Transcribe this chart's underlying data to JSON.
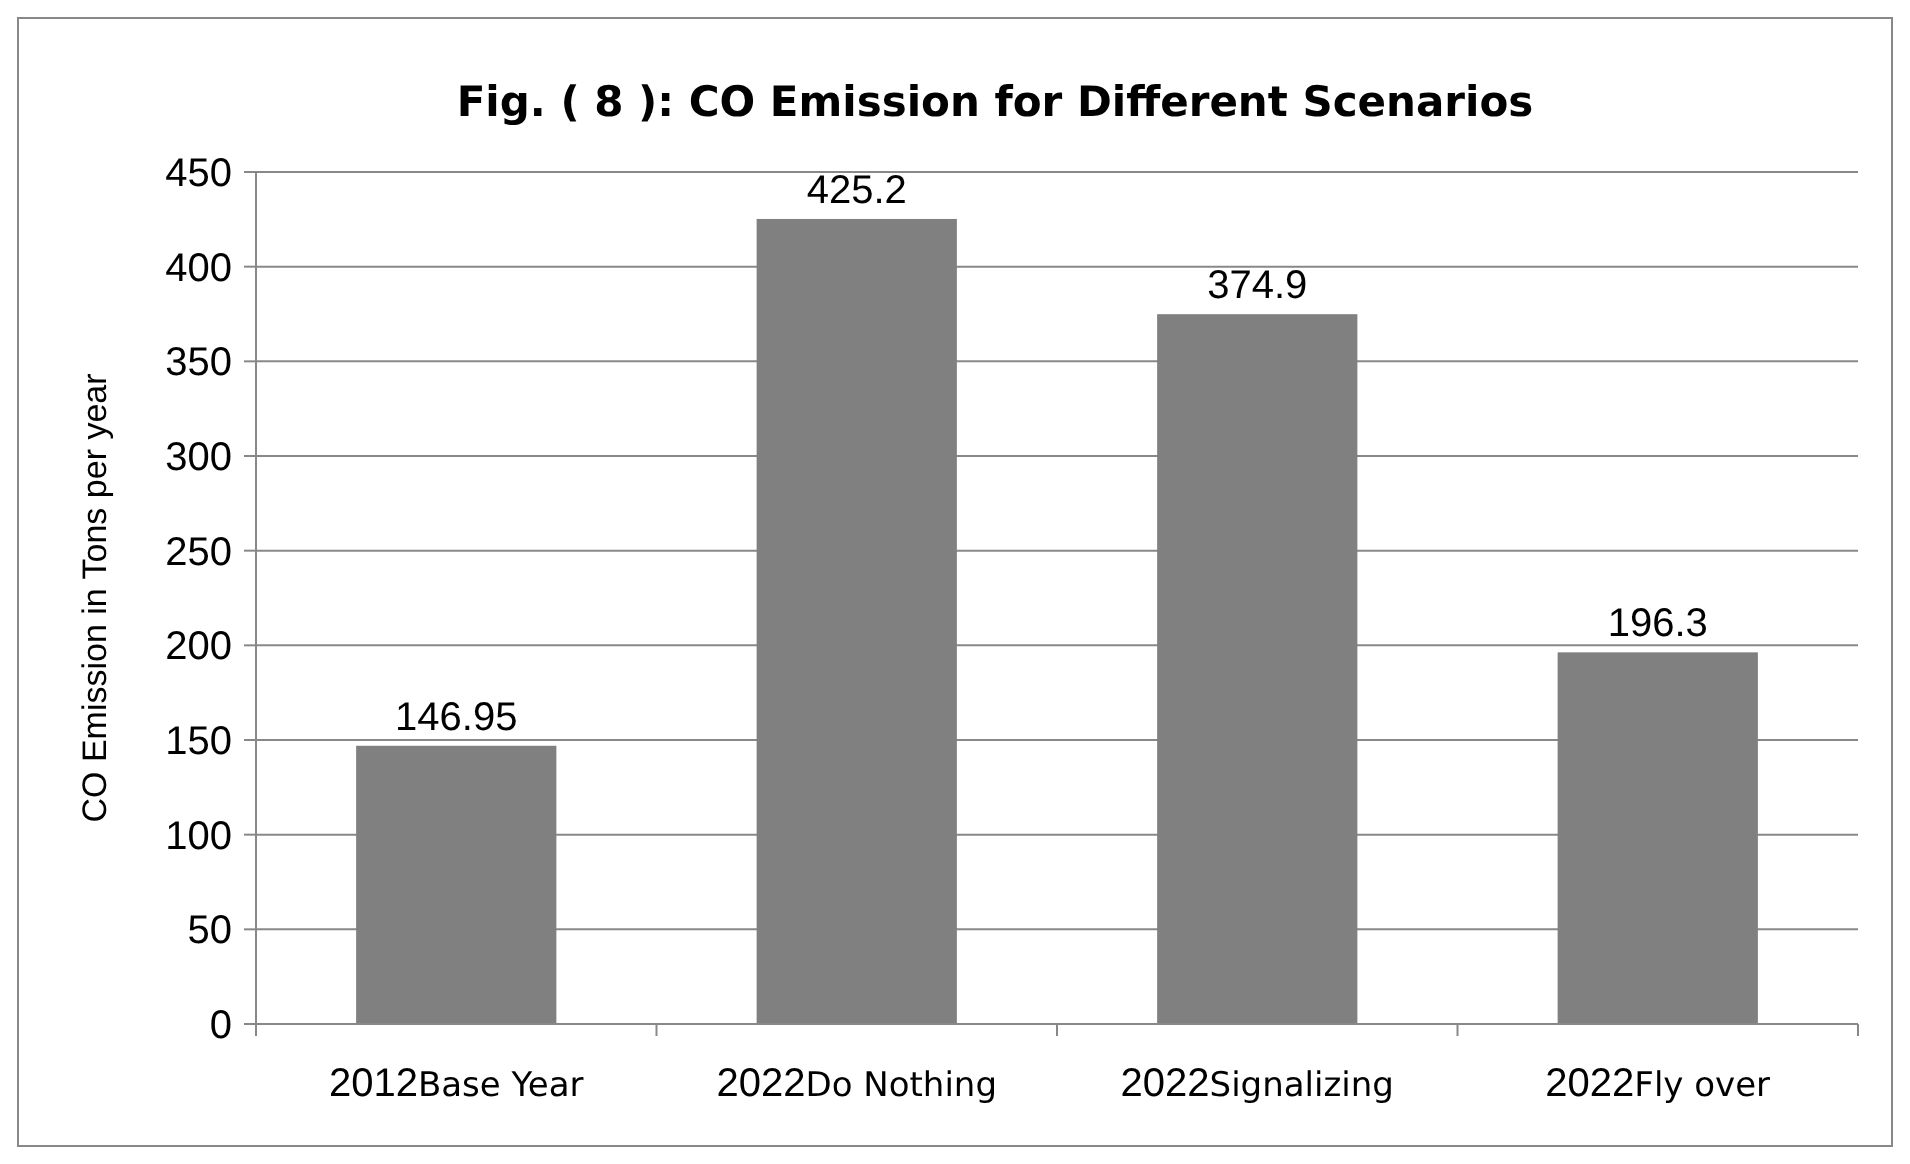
{
  "chart_data": {
    "type": "bar",
    "title": "Fig. ( 8 ): CO Emission for Different Scenarios",
    "ylabel": "CO Emission in Tons per year",
    "categories": [
      "2012Base Year",
      "2022Do Nothing",
      "2022Signalizing",
      "2022Fly over"
    ],
    "values": [
      146.95,
      425.2,
      374.9,
      196.3
    ],
    "color": "#808080",
    "data_labels": true,
    "ylim": [
      0,
      450
    ],
    "yticks": [
      0,
      50,
      100,
      150,
      200,
      250,
      300,
      350,
      400,
      450
    ],
    "grid": "y"
  }
}
